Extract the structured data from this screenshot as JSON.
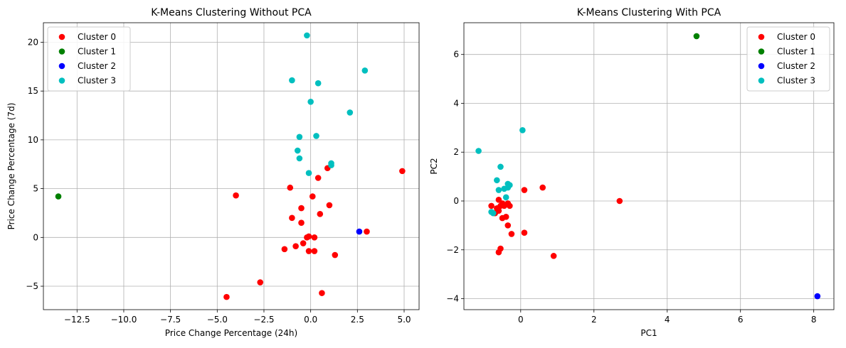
{
  "chart_data": [
    {
      "type": "scatter",
      "title": "K-Means Clustering Without PCA",
      "xlabel": "Price Change Percentage (24h)",
      "ylabel": "Price Change Percentage (7d)",
      "xlim": [
        -14.3,
        5.8
      ],
      "ylim": [
        -7.4,
        22.0
      ],
      "xticks": [
        -12.5,
        -10.0,
        -7.5,
        -5.0,
        -2.5,
        0.0,
        2.5,
        5.0
      ],
      "xtick_labels": [
        "−12.5",
        "−10.0",
        "−7.5",
        "−5.0",
        "−2.5",
        "0.0",
        "2.5",
        "5.0"
      ],
      "yticks": [
        -5,
        0,
        5,
        10,
        15,
        20
      ],
      "ytick_labels": [
        "−5",
        "0",
        "5",
        "10",
        "15",
        "20"
      ],
      "grid": true,
      "legend_position": "top-left",
      "series": [
        {
          "name": "Cluster 0",
          "color": "#ff0000",
          "points": [
            [
              -4.5,
              -6.1
            ],
            [
              -4.0,
              4.3
            ],
            [
              -2.7,
              -4.6
            ],
            [
              -1.4,
              -1.2
            ],
            [
              -1.1,
              5.1
            ],
            [
              -1.0,
              2.0
            ],
            [
              -0.8,
              -0.9
            ],
            [
              -0.5,
              3.0
            ],
            [
              -0.5,
              1.5
            ],
            [
              -0.4,
              -0.6
            ],
            [
              -0.2,
              0.0
            ],
            [
              -0.1,
              0.1
            ],
            [
              -0.1,
              -1.4
            ],
            [
              0.1,
              4.2
            ],
            [
              0.2,
              -1.4
            ],
            [
              0.2,
              0.0
            ],
            [
              0.4,
              6.1
            ],
            [
              0.5,
              2.4
            ],
            [
              0.6,
              -5.7
            ],
            [
              0.9,
              7.1
            ],
            [
              1.0,
              3.3
            ],
            [
              1.3,
              -1.8
            ],
            [
              3.0,
              0.6
            ],
            [
              4.9,
              6.8
            ]
          ]
        },
        {
          "name": "Cluster 1",
          "color": "#008000",
          "points": [
            [
              -13.5,
              4.2
            ]
          ]
        },
        {
          "name": "Cluster 2",
          "color": "#0000ff",
          "points": [
            [
              2.6,
              0.6
            ]
          ]
        },
        {
          "name": "Cluster 3",
          "color": "#00bfbf",
          "points": [
            [
              -0.2,
              20.7
            ],
            [
              2.9,
              17.1
            ],
            [
              -1.0,
              16.1
            ],
            [
              0.4,
              15.8
            ],
            [
              0.0,
              13.9
            ],
            [
              2.1,
              12.8
            ],
            [
              -0.6,
              10.3
            ],
            [
              0.3,
              10.4
            ],
            [
              -0.7,
              8.9
            ],
            [
              -0.6,
              8.1
            ],
            [
              1.1,
              7.6
            ],
            [
              1.1,
              7.4
            ],
            [
              -0.1,
              6.6
            ]
          ]
        }
      ]
    },
    {
      "type": "scatter",
      "title": "K-Means Clustering With PCA",
      "xlabel": "PC1",
      "ylabel": "PC2",
      "xlim": [
        -1.55,
        8.55
      ],
      "ylim": [
        -4.45,
        7.3
      ],
      "xticks": [
        0,
        2,
        4,
        6,
        8
      ],
      "xtick_labels": [
        "0",
        "2",
        "4",
        "6",
        "8"
      ],
      "yticks": [
        -4,
        -2,
        0,
        2,
        4,
        6
      ],
      "ytick_labels": [
        "−4",
        "−2",
        "0",
        "2",
        "4",
        "6"
      ],
      "grid": true,
      "legend_position": "top-right",
      "series": [
        {
          "name": "Cluster 0",
          "color": "#ff0000",
          "points": [
            [
              -0.8,
              -0.2
            ],
            [
              -0.7,
              -0.5
            ],
            [
              -0.65,
              -0.3
            ],
            [
              -0.6,
              0.05
            ],
            [
              -0.6,
              -0.4
            ],
            [
              -0.55,
              -0.2
            ],
            [
              -0.5,
              -0.1
            ],
            [
              -0.5,
              -0.7
            ],
            [
              -0.45,
              -0.2
            ],
            [
              -0.4,
              -0.65
            ],
            [
              -0.35,
              -0.1
            ],
            [
              -0.35,
              -1.0
            ],
            [
              -0.3,
              -0.2
            ],
            [
              -0.25,
              -1.35
            ],
            [
              -0.6,
              -2.1
            ],
            [
              -0.55,
              -1.95
            ],
            [
              0.1,
              -1.3
            ],
            [
              0.1,
              0.45
            ],
            [
              0.6,
              0.55
            ],
            [
              0.9,
              -2.25
            ],
            [
              2.7,
              0.0
            ]
          ]
        },
        {
          "name": "Cluster 1",
          "color": "#008000",
          "points": [
            [
              4.8,
              6.75
            ]
          ]
        },
        {
          "name": "Cluster 2",
          "color": "#0000ff",
          "points": [
            [
              8.1,
              -3.9
            ]
          ]
        },
        {
          "name": "Cluster 3",
          "color": "#00bfbf",
          "points": [
            [
              -1.15,
              2.05
            ],
            [
              0.05,
              2.9
            ],
            [
              -0.55,
              1.4
            ],
            [
              -0.65,
              0.85
            ],
            [
              -0.35,
              0.7
            ],
            [
              -0.3,
              0.65
            ],
            [
              -0.45,
              0.5
            ],
            [
              -0.6,
              0.45
            ],
            [
              -0.35,
              0.55
            ],
            [
              -0.4,
              0.15
            ],
            [
              -0.8,
              -0.45
            ],
            [
              -0.75,
              -0.5
            ]
          ]
        }
      ]
    }
  ]
}
